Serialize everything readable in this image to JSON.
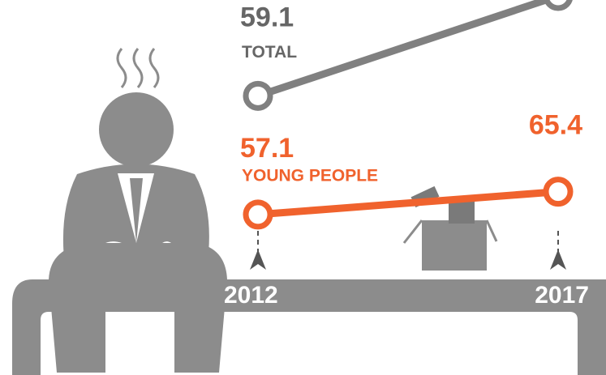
{
  "chart_data": {
    "type": "line",
    "categories": [
      "2012",
      "2017"
    ],
    "series": [
      {
        "name": "TOTAL",
        "color": "#808080",
        "values": [
          59.1,
          64
        ],
        "value_labels": [
          "59.1",
          null
        ],
        "ylim": [
          58,
          64
        ]
      },
      {
        "name": "YOUNG PEOPLE",
        "color": "#f0622d",
        "values": [
          57.1,
          65.4
        ],
        "value_labels": [
          "57.1",
          "65.4"
        ],
        "ylim": [
          50,
          70
        ]
      }
    ]
  }
}
